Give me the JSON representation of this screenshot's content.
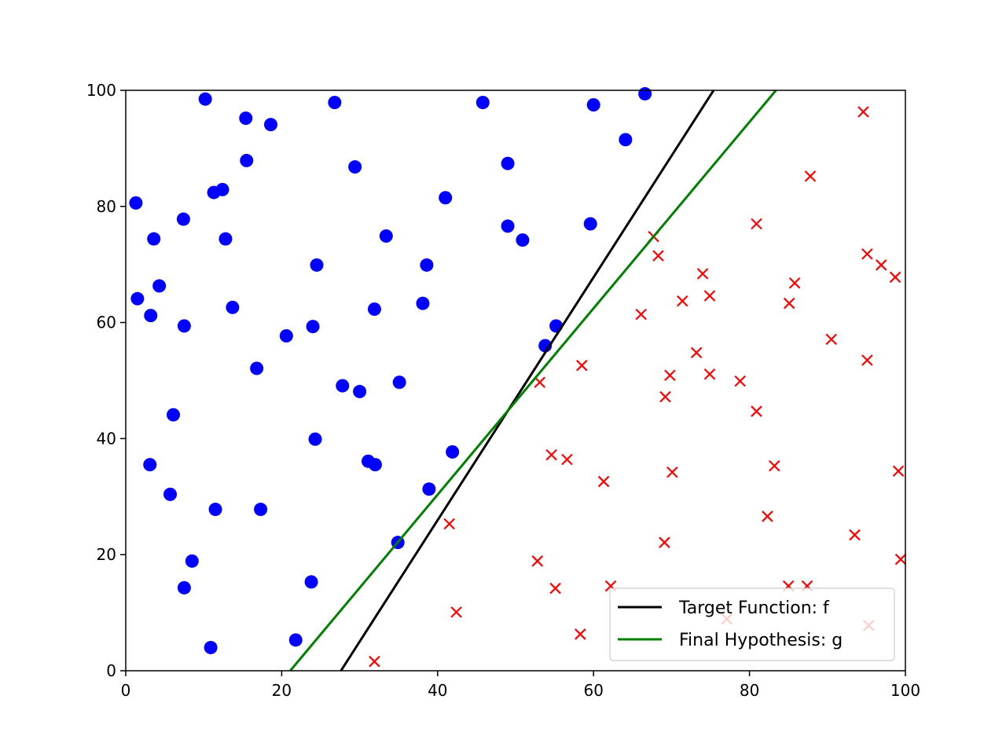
{
  "chart_data": {
    "type": "scatter",
    "title": "",
    "xlabel": "",
    "ylabel": "",
    "xlim": [
      0,
      100
    ],
    "ylim": [
      0,
      100
    ],
    "xticks": [
      0,
      20,
      40,
      60,
      80,
      100
    ],
    "yticks": [
      0,
      20,
      40,
      60,
      80,
      100
    ],
    "grid": false,
    "legend_position": "bottom-right",
    "series": [
      {
        "marker": "circle",
        "color": "#0000ff",
        "points": [
          [
            1.3,
            80.6
          ],
          [
            1.5,
            64.1
          ],
          [
            3.2,
            61.2
          ],
          [
            3.6,
            74.4
          ],
          [
            4.3,
            66.3
          ],
          [
            3.1,
            35.5
          ],
          [
            6.1,
            44.1
          ],
          [
            5.7,
            30.4
          ],
          [
            7.4,
            77.8
          ],
          [
            7.5,
            59.4
          ],
          [
            7.5,
            14.3
          ],
          [
            8.5,
            18.9
          ],
          [
            10.2,
            98.5
          ],
          [
            10.9,
            4.0
          ],
          [
            11.3,
            82.4
          ],
          [
            11.5,
            27.8
          ],
          [
            12.4,
            82.9
          ],
          [
            12.8,
            74.4
          ],
          [
            13.7,
            62.6
          ],
          [
            15.4,
            95.2
          ],
          [
            15.5,
            87.9
          ],
          [
            16.8,
            52.1
          ],
          [
            17.3,
            27.8
          ],
          [
            18.6,
            94.1
          ],
          [
            20.6,
            57.7
          ],
          [
            21.8,
            5.3
          ],
          [
            23.8,
            15.3
          ],
          [
            24.0,
            59.3
          ],
          [
            24.3,
            39.9
          ],
          [
            24.5,
            69.9
          ],
          [
            26.8,
            97.9
          ],
          [
            27.8,
            49.1
          ],
          [
            29.4,
            86.8
          ],
          [
            30.0,
            48.1
          ],
          [
            31.1,
            36.1
          ],
          [
            31.9,
            62.3
          ],
          [
            32.0,
            35.5
          ],
          [
            33.4,
            74.9
          ],
          [
            34.9,
            22.1
          ],
          [
            35.1,
            49.7
          ],
          [
            38.1,
            63.3
          ],
          [
            38.6,
            69.9
          ],
          [
            38.9,
            31.3
          ],
          [
            41.0,
            81.5
          ],
          [
            41.9,
            37.7
          ],
          [
            45.8,
            97.9
          ],
          [
            49.0,
            87.4
          ],
          [
            49.0,
            76.6
          ],
          [
            50.9,
            74.2
          ],
          [
            53.8,
            56.0
          ],
          [
            55.2,
            59.4
          ],
          [
            59.6,
            77.0
          ],
          [
            60.0,
            97.5
          ],
          [
            64.1,
            91.5
          ],
          [
            66.6,
            99.4
          ]
        ]
      },
      {
        "marker": "x",
        "color": "#ff0000",
        "points": [
          [
            31.9,
            1.6
          ],
          [
            41.5,
            25.3
          ],
          [
            42.4,
            10.1
          ],
          [
            52.8,
            18.9
          ],
          [
            53.1,
            49.7
          ],
          [
            54.6,
            37.2
          ],
          [
            55.1,
            14.2
          ],
          [
            56.6,
            36.4
          ],
          [
            58.3,
            6.3
          ],
          [
            58.5,
            52.6
          ],
          [
            61.3,
            32.6
          ],
          [
            62.2,
            14.6
          ],
          [
            66.1,
            61.4
          ],
          [
            67.7,
            74.8
          ],
          [
            68.3,
            71.5
          ],
          [
            69.1,
            22.1
          ],
          [
            69.2,
            47.2
          ],
          [
            69.8,
            50.9
          ],
          [
            70.1,
            34.2
          ],
          [
            71.4,
            63.7
          ],
          [
            73.2,
            54.8
          ],
          [
            74.0,
            68.4
          ],
          [
            74.9,
            64.6
          ],
          [
            74.9,
            51.1
          ],
          [
            77.1,
            8.9
          ],
          [
            78.8,
            49.9
          ],
          [
            80.9,
            77.0
          ],
          [
            80.9,
            44.7
          ],
          [
            82.3,
            26.6
          ],
          [
            83.2,
            35.3
          ],
          [
            85.0,
            14.6
          ],
          [
            85.1,
            63.3
          ],
          [
            85.8,
            66.8
          ],
          [
            87.4,
            14.6
          ],
          [
            87.8,
            85.2
          ],
          [
            90.5,
            57.1
          ],
          [
            93.5,
            23.4
          ],
          [
            94.6,
            96.3
          ],
          [
            95.1,
            71.8
          ],
          [
            95.1,
            53.5
          ],
          [
            95.3,
            7.8
          ],
          [
            96.9,
            69.9
          ],
          [
            98.7,
            67.8
          ],
          [
            99.1,
            34.4
          ],
          [
            99.4,
            19.2
          ]
        ]
      }
    ],
    "lines": [
      {
        "name": "Target Function: f",
        "color": "#000000",
        "points": [
          [
            27.6,
            0
          ],
          [
            75.4,
            100
          ]
        ]
      },
      {
        "name": "Final Hypothesis: g",
        "color": "#008000",
        "points": [
          [
            21.1,
            0
          ],
          [
            83.4,
            100
          ]
        ]
      }
    ]
  }
}
